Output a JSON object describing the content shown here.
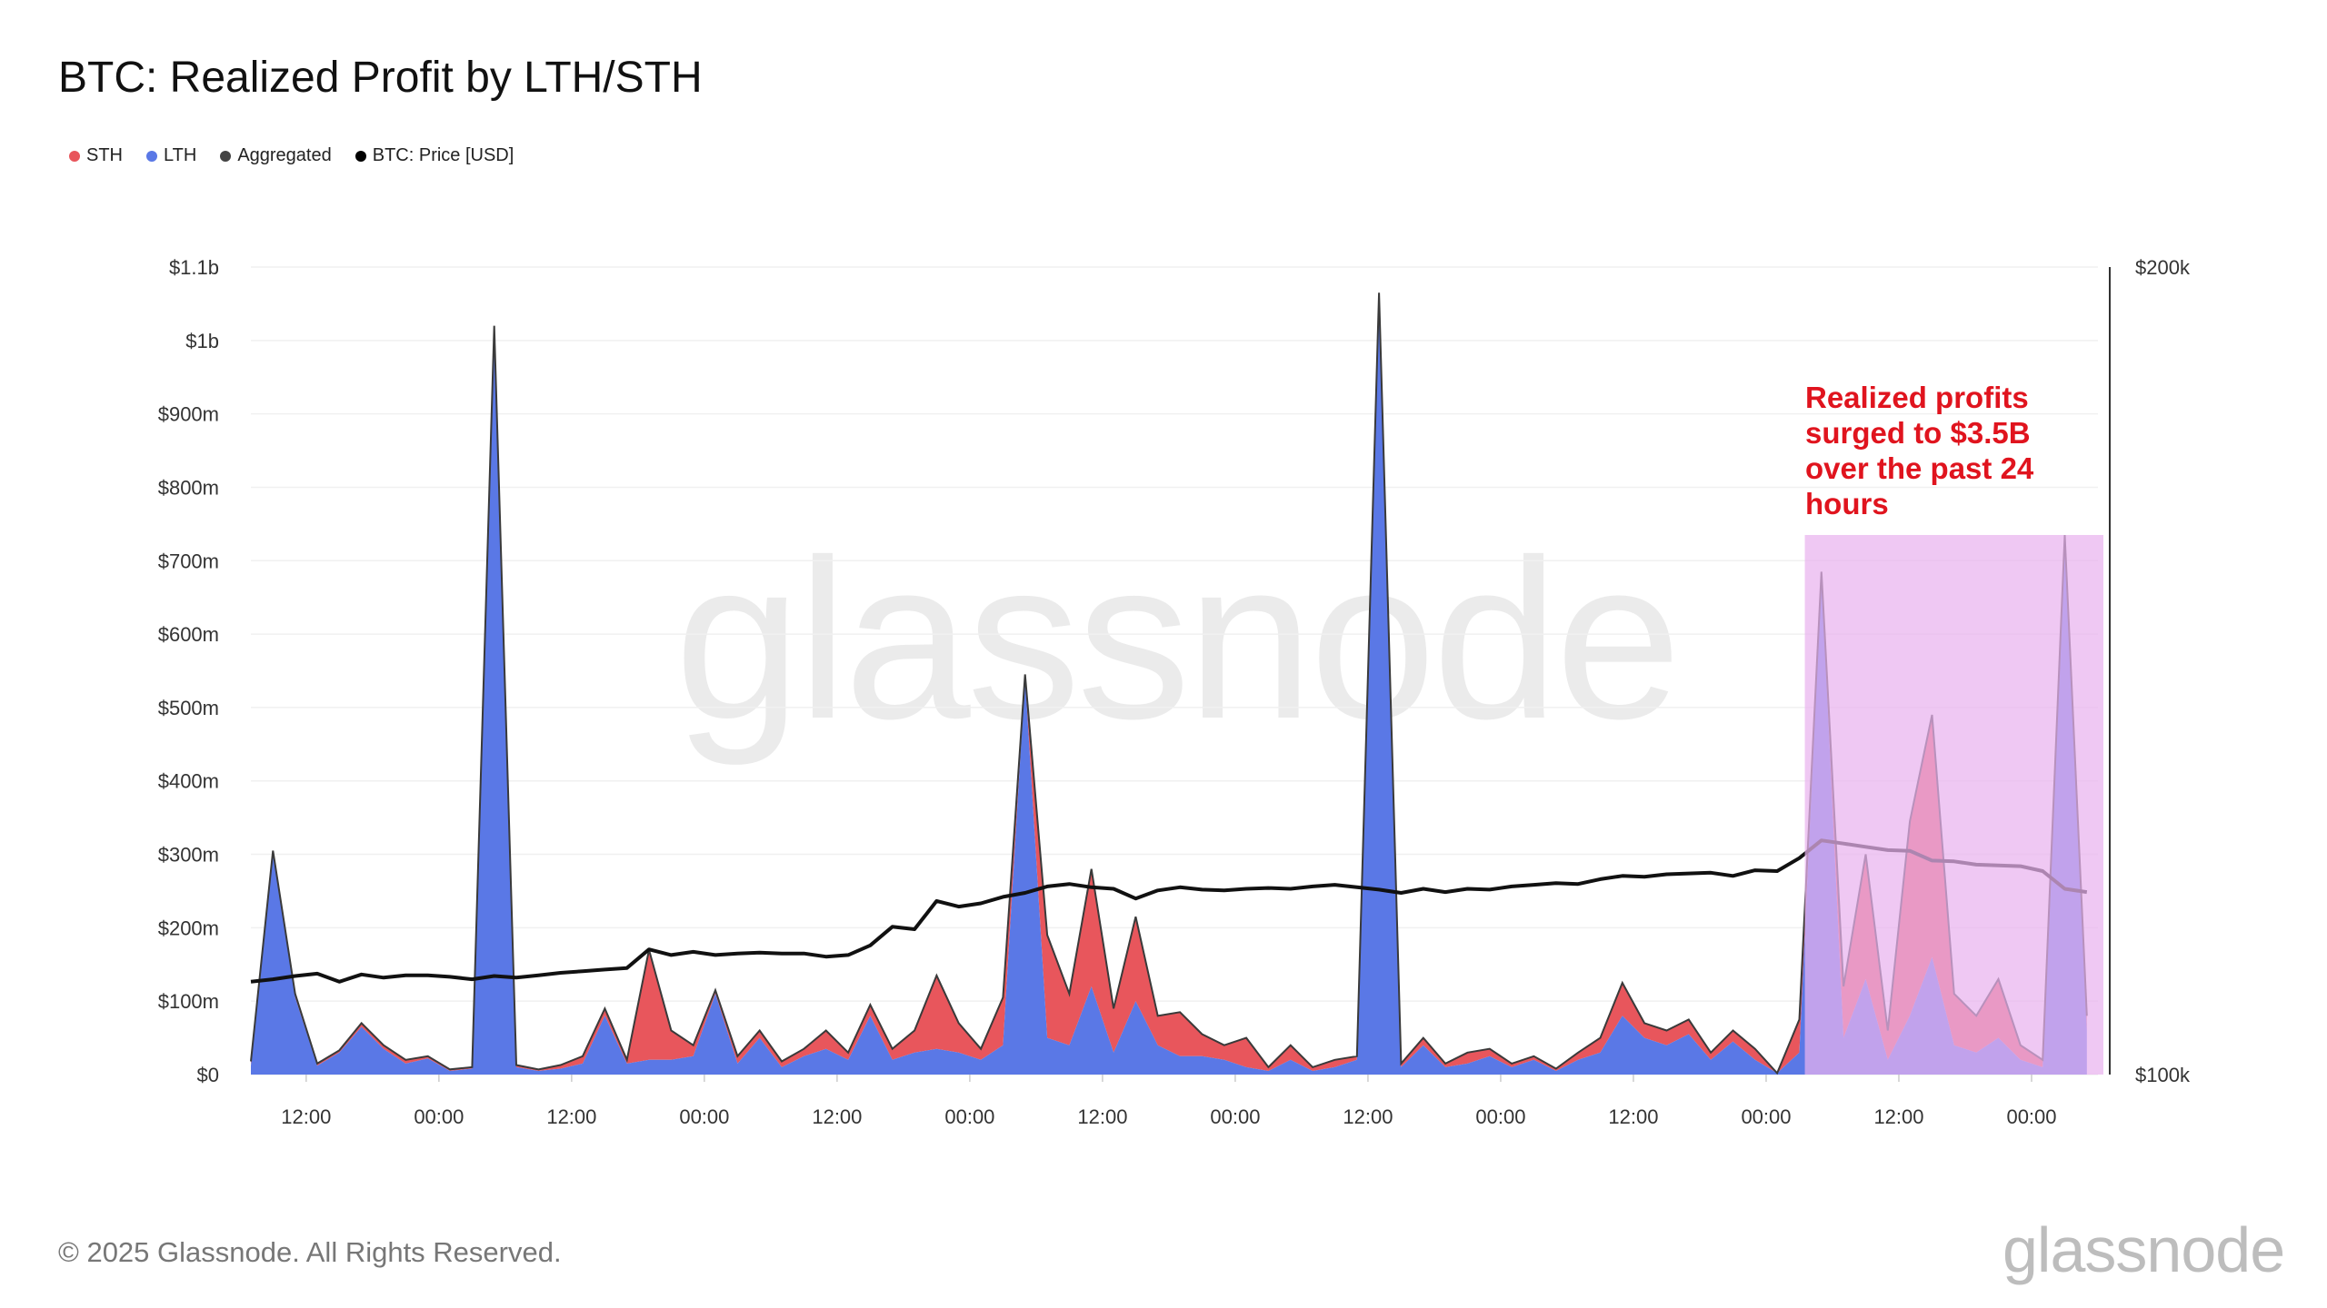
{
  "title": "BTC: Realized Profit by LTH/STH",
  "legend": [
    {
      "label": "STH",
      "color": "#e8565c"
    },
    {
      "label": "LTH",
      "color": "#5a78e6"
    },
    {
      "label": "Aggregated",
      "color": "#444444"
    },
    {
      "label": "BTC: Price [USD]",
      "color": "#000000"
    }
  ],
  "watermark": "glassnode",
  "annotation": "Realized profits surged to $3.5B over the past 24 hours",
  "footer": "© 2025 Glassnode. All Rights Reserved.",
  "logo": "glassnode",
  "chart_data": {
    "type": "area",
    "stacked": true,
    "title": "BTC: Realized Profit by LTH/STH",
    "y_left": {
      "unit": "million USD",
      "range": [
        0,
        1100
      ],
      "ticks": [
        "$0",
        "$100m",
        "$200m",
        "$300m",
        "$400m",
        "$500m",
        "$600m",
        "$700m",
        "$800m",
        "$900m",
        "$1b",
        "$1.1b"
      ]
    },
    "y_right": {
      "unit": "thousand USD",
      "range": [
        100,
        200
      ],
      "ticks": [
        "$100k",
        "$200k"
      ]
    },
    "x_ticks": [
      "12:00",
      "00:00",
      "12:00",
      "00:00",
      "12:00",
      "00:00",
      "12:00",
      "00:00",
      "12:00",
      "00:00",
      "12:00",
      "00:00",
      "12:00",
      "00:00"
    ],
    "grid": true,
    "legend_placement": "top-left",
    "x": [
      "07:00",
      "09:00",
      "11:00",
      "13:00",
      "15:00",
      "17:00",
      "19:00",
      "21:00",
      "23:00",
      "01:00",
      "03:00",
      "05:00",
      "07:00",
      "09:00",
      "11:00",
      "13:00",
      "15:00",
      "17:00",
      "19:00",
      "21:00",
      "23:00",
      "01:00",
      "03:00",
      "05:00",
      "07:00",
      "09:00",
      "11:00",
      "13:00",
      "15:00",
      "17:00",
      "19:00",
      "21:00",
      "23:00",
      "01:00",
      "03:00",
      "05:00",
      "07:00",
      "09:00",
      "11:00",
      "13:00",
      "15:00",
      "17:00",
      "19:00",
      "21:00",
      "23:00",
      "01:00",
      "03:00",
      "05:00",
      "07:00",
      "09:00",
      "11:00",
      "13:00",
      "15:00",
      "17:00",
      "19:00",
      "21:00",
      "23:00",
      "01:00",
      "03:00",
      "05:00",
      "07:00",
      "09:00",
      "11:00",
      "13:00",
      "15:00",
      "17:00",
      "19:00",
      "21:00",
      "23:00",
      "01:00",
      "03:00",
      "05:00",
      "07:00",
      "09:00",
      "11:00",
      "13:00",
      "15:00",
      "17:00",
      "19:00",
      "21:00",
      "23:00",
      "01:00",
      "03:00",
      "05:00"
    ],
    "series": [
      {
        "name": "LTH",
        "color": "#5a78e6",
        "values": [
          12,
          300,
          105,
          12,
          30,
          65,
          35,
          15,
          22,
          5,
          8,
          1015,
          10,
          5,
          8,
          15,
          80,
          15,
          20,
          20,
          25,
          110,
          15,
          50,
          10,
          25,
          35,
          20,
          80,
          20,
          30,
          35,
          30,
          20,
          40,
          540,
          50,
          40,
          120,
          30,
          100,
          40,
          25,
          25,
          20,
          10,
          5,
          20,
          5,
          10,
          20,
          1060,
          10,
          40,
          10,
          15,
          25,
          10,
          20,
          5,
          20,
          30,
          80,
          50,
          40,
          55,
          20,
          45,
          20,
          2,
          30,
          680,
          50,
          130,
          20,
          80,
          160,
          40,
          30,
          50,
          20,
          10,
          735,
          60
        ]
      },
      {
        "name": "STH",
        "color": "#e8565c",
        "values": [
          6,
          5,
          5,
          3,
          3,
          5,
          5,
          5,
          3,
          2,
          2,
          5,
          3,
          2,
          5,
          10,
          10,
          5,
          150,
          40,
          15,
          5,
          10,
          10,
          8,
          10,
          25,
          10,
          15,
          15,
          30,
          100,
          40,
          15,
          65,
          5,
          140,
          70,
          160,
          60,
          115,
          40,
          60,
          30,
          20,
          40,
          5,
          20,
          5,
          10,
          5,
          5,
          5,
          10,
          5,
          15,
          10,
          5,
          5,
          3,
          10,
          20,
          45,
          20,
          20,
          20,
          10,
          15,
          15,
          0,
          45,
          5,
          70,
          170,
          40,
          265,
          330,
          70,
          50,
          80,
          20,
          10,
          0,
          20
        ]
      },
      {
        "name": "BTC: Price [USD]",
        "axis": "right",
        "color": "#000000",
        "values": [
          111.5,
          111.8,
          112.2,
          112.5,
          111.5,
          112.4,
          112.0,
          112.3,
          112.3,
          112.1,
          111.8,
          112.2,
          112.0,
          112.3,
          112.6,
          112.8,
          113.0,
          113.2,
          115.5,
          114.8,
          115.2,
          114.8,
          115.0,
          115.1,
          115.0,
          115.0,
          114.6,
          114.8,
          116.0,
          118.3,
          118.0,
          121.5,
          120.8,
          121.2,
          122.0,
          122.5,
          123.3,
          123.6,
          123.2,
          123.0,
          121.8,
          122.8,
          123.2,
          122.9,
          122.8,
          123.0,
          123.1,
          123.0,
          123.3,
          123.5,
          123.2,
          122.9,
          122.5,
          123.0,
          122.6,
          123.0,
          122.9,
          123.3,
          123.5,
          123.7,
          123.6,
          124.2,
          124.6,
          124.5,
          124.8,
          124.9,
          125.0,
          124.6,
          125.3,
          125.2,
          126.8,
          129.0,
          128.6,
          128.2,
          127.8,
          127.7,
          126.5,
          126.4,
          126.0,
          125.9,
          125.8,
          125.2,
          123.0,
          122.6
        ]
      }
    ],
    "highlight": {
      "x_from": "03:30",
      "x_to": "05:00",
      "y_range": [
        0,
        735
      ],
      "color": "#e9b3ee"
    },
    "annotations": [
      "Realized profits surged to $3.5B over the past 24 hours"
    ]
  }
}
